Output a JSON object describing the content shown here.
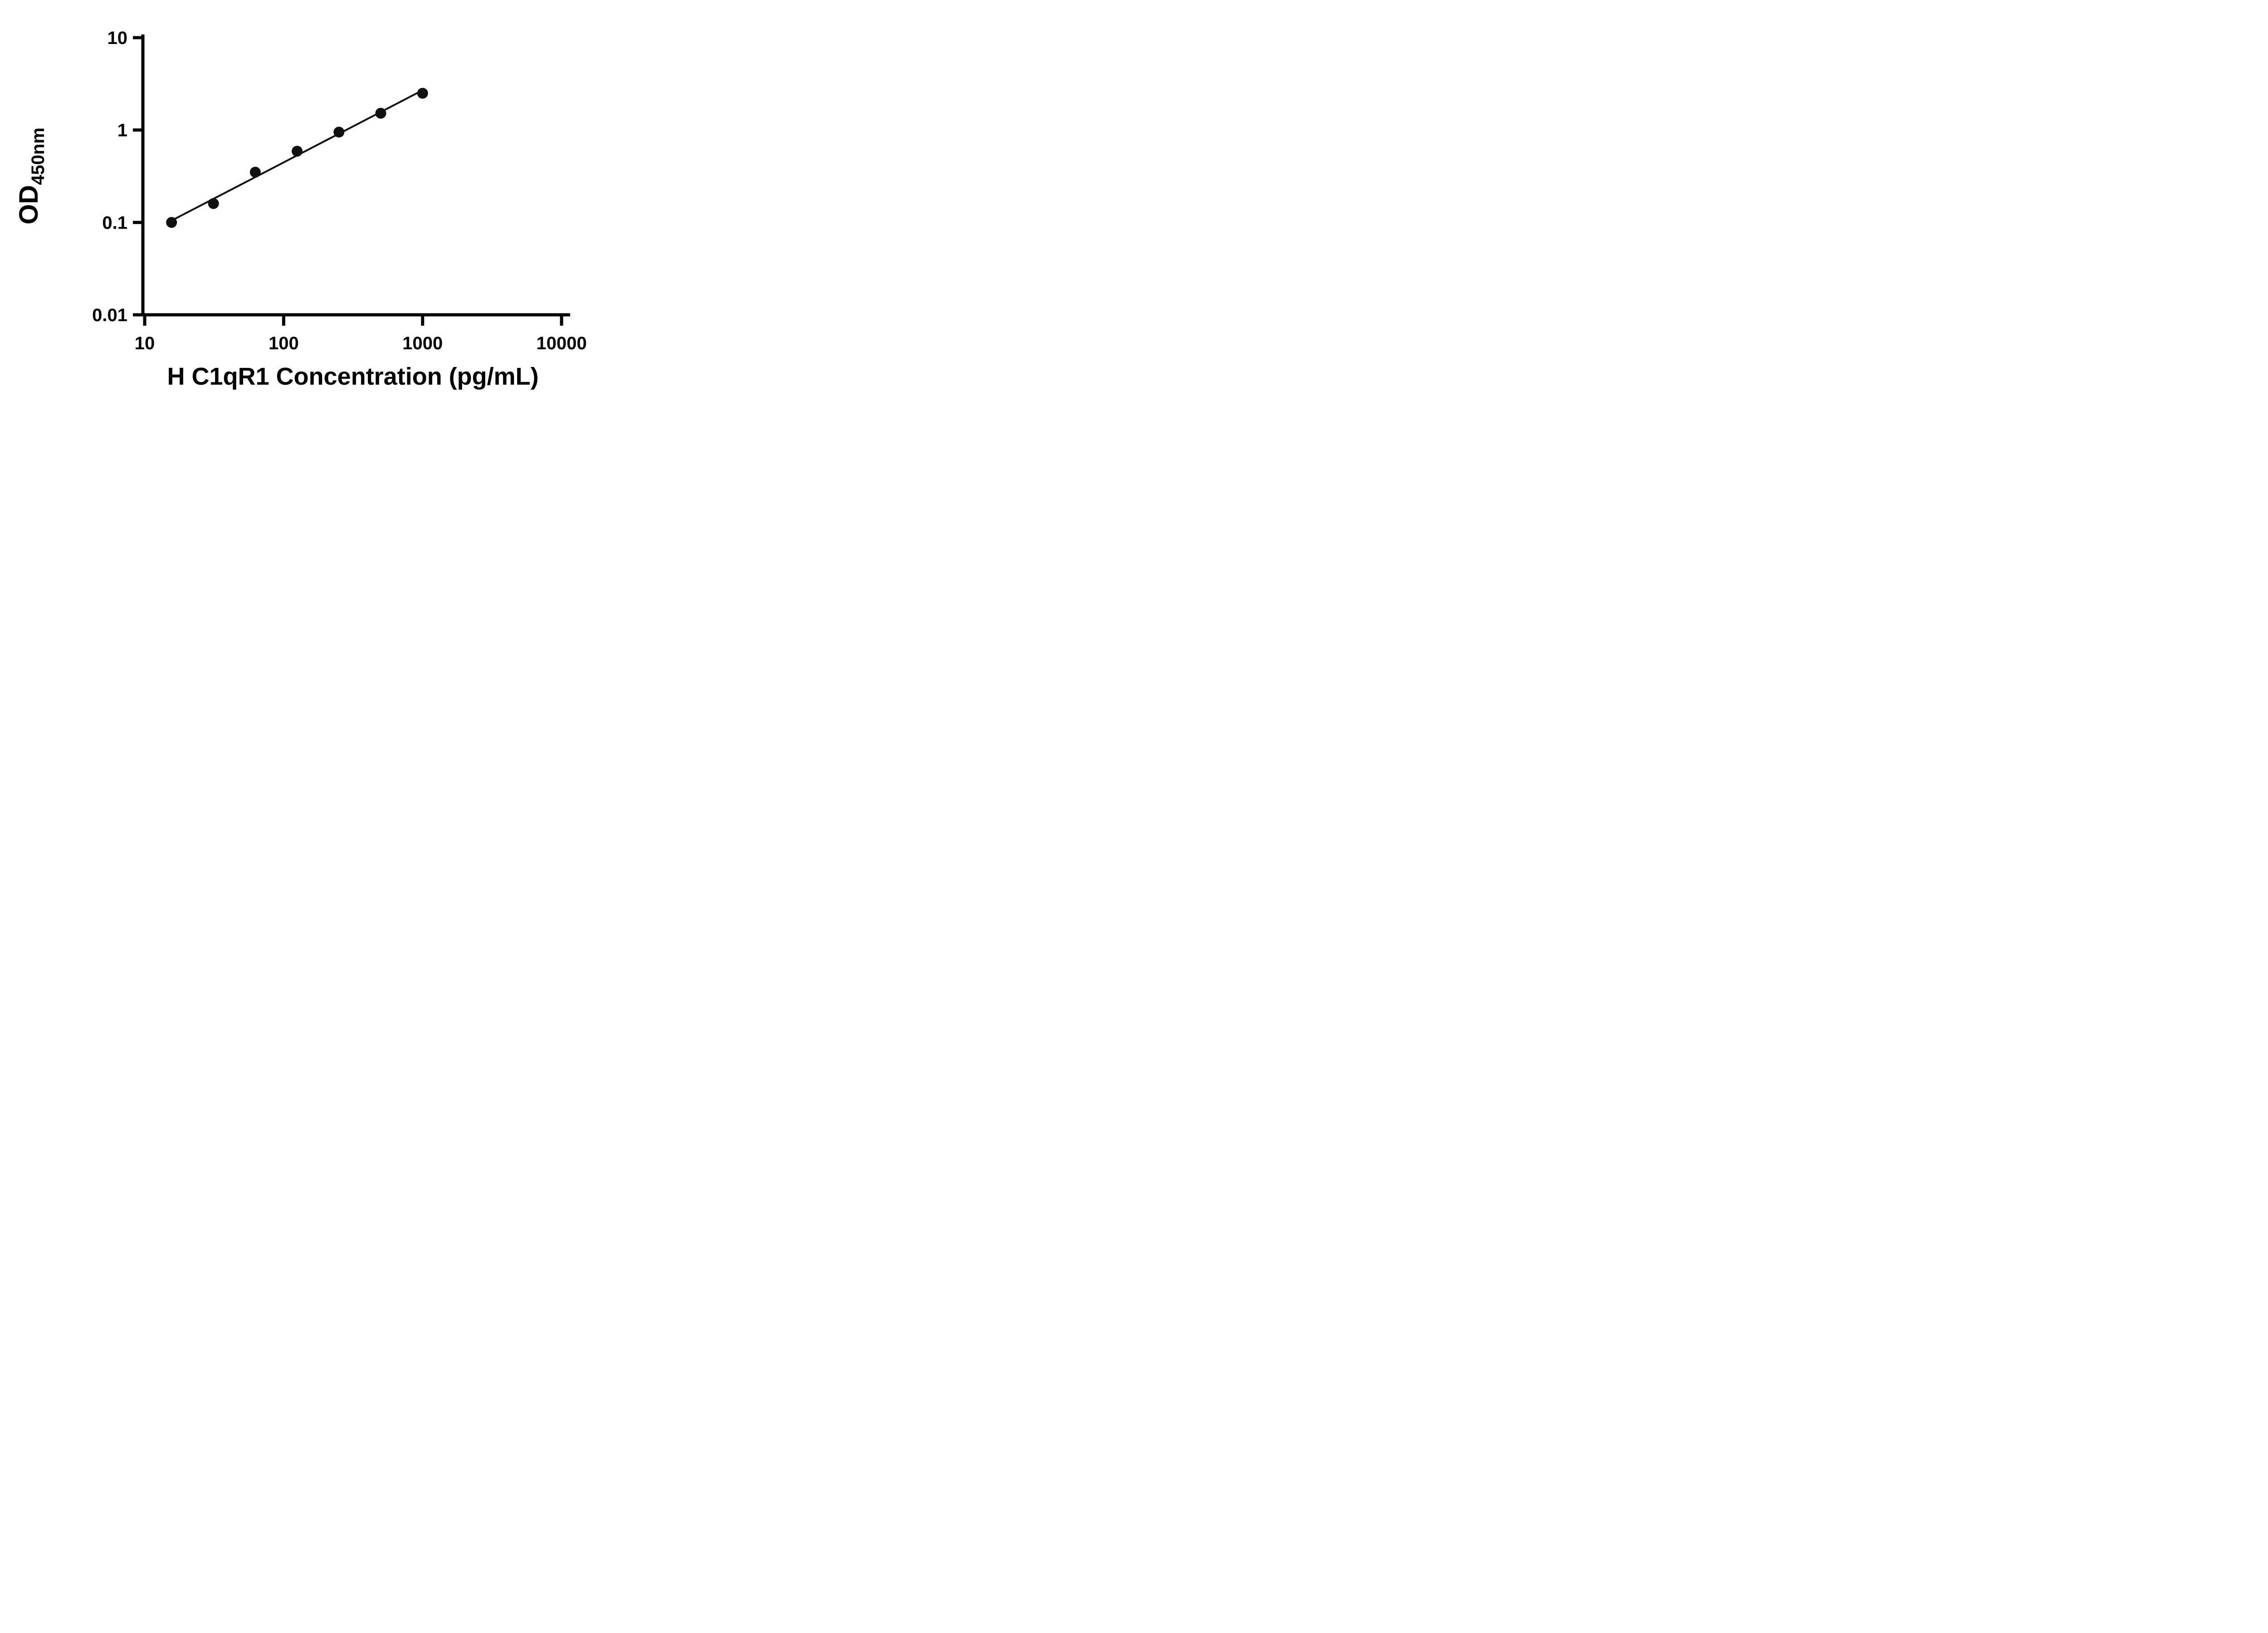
{
  "figure": {
    "background": "#ffffff",
    "axis_color": "#000000",
    "text_color": "#000000"
  },
  "chart_data": {
    "type": "scatter",
    "title": "",
    "xlabel": "H C1qR1 Concentration (pg/mL)",
    "ylabel_main": "OD",
    "ylabel_sub": "450nm",
    "x_scale": "log10",
    "y_scale": "log10",
    "xlim": [
      10,
      10000
    ],
    "ylim": [
      0.01,
      10
    ],
    "x_ticks": [
      10,
      100,
      1000,
      10000
    ],
    "x_tick_labels": [
      "10",
      "100",
      "1000",
      "10000"
    ],
    "y_ticks": [
      0.01,
      0.1,
      1,
      10
    ],
    "y_tick_labels": [
      "0.01",
      "0.1",
      "1",
      "10"
    ],
    "grid": false,
    "legend": "none",
    "marker_color": "#111111",
    "line_color": "#111111",
    "marker_shape": "circle",
    "points": [
      {
        "x": 15.6,
        "y": 0.1
      },
      {
        "x": 31.25,
        "y": 0.16
      },
      {
        "x": 62.5,
        "y": 0.35
      },
      {
        "x": 125,
        "y": 0.59
      },
      {
        "x": 250,
        "y": 0.95
      },
      {
        "x": 500,
        "y": 1.52
      },
      {
        "x": 1000,
        "y": 2.5
      }
    ],
    "trend_line": {
      "fit": "least-squares-loglog",
      "x_start": 14.8,
      "x_end": 1005
    }
  }
}
